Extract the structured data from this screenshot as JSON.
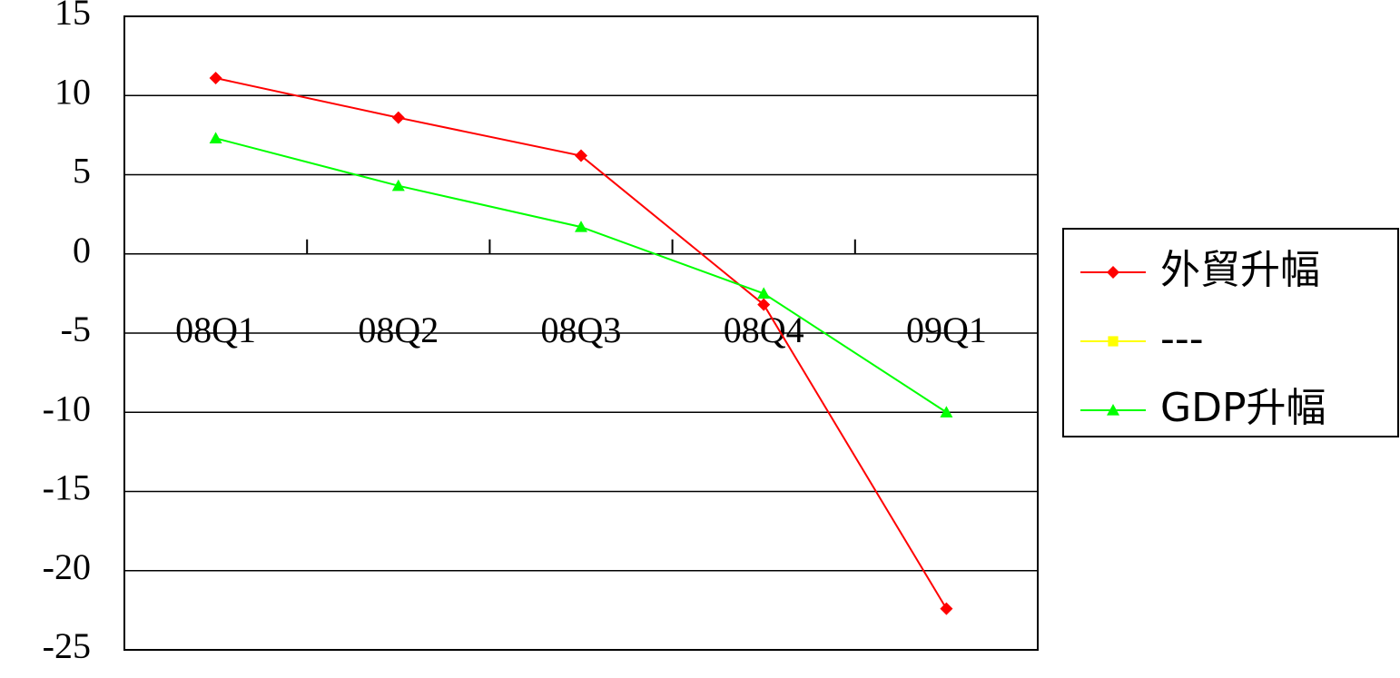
{
  "chart_data": {
    "type": "line",
    "categories": [
      "08Q1",
      "08Q2",
      "08Q3",
      "08Q4",
      "09Q1"
    ],
    "series": [
      {
        "name": "外貿升幅",
        "color": "#ff0000",
        "marker": "diamond",
        "values": [
          11.1,
          8.6,
          6.2,
          -3.2,
          -22.4
        ]
      },
      {
        "name": "---",
        "color": "#ffff00",
        "marker": "square",
        "values": [
          null,
          null,
          null,
          null,
          null
        ]
      },
      {
        "name": "GDP升幅",
        "color": "#00ff00",
        "marker": "triangle",
        "values": [
          7.3,
          4.3,
          1.7,
          -2.5,
          -10.0
        ]
      }
    ],
    "ylim": [
      -25,
      15
    ],
    "yticks": [
      -25,
      -20,
      -15,
      -10,
      -5,
      0,
      5,
      10,
      15
    ],
    "grid": true,
    "legend": "right"
  }
}
